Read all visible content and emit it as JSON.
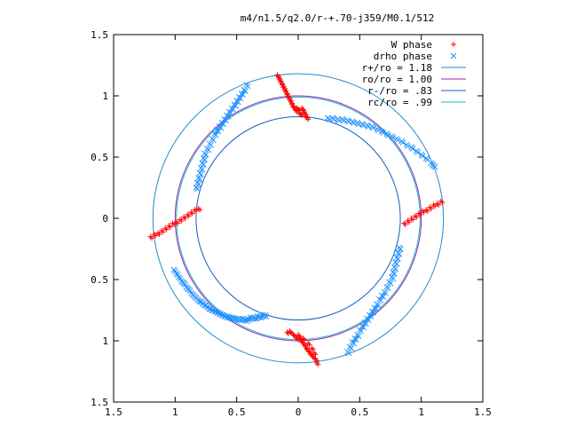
{
  "chart_data": {
    "type": "scatter",
    "title": "m4/n1.5/q2.0/r-+.70-j359/M0.1/512",
    "xlabel": "",
    "ylabel": "",
    "xlim": [
      -1.5,
      1.5
    ],
    "ylim": [
      -1.5,
      1.5
    ],
    "x_ticks": [
      -1.5,
      -1,
      -0.5,
      0,
      0.5,
      1,
      1.5
    ],
    "y_ticks": [
      -1.5,
      -1,
      -0.5,
      0,
      0.5,
      1,
      1.5
    ],
    "x_tick_labels": [
      "1.5",
      "1",
      "0.5",
      "0",
      "0.5",
      "1",
      "1.5"
    ],
    "y_tick_labels": [
      "1.5",
      "1",
      "0.5",
      "0",
      "0.5",
      "1",
      "1.5"
    ],
    "grid": false,
    "legend_position": "top-right",
    "series": [
      {
        "name": "W phase",
        "kind": "points",
        "marker": "plus",
        "color": "#ff0000",
        "x": [
          -0.17,
          -0.16,
          -0.15,
          -0.14,
          -0.13,
          -0.12,
          -0.11,
          -0.1,
          -0.09,
          -0.08,
          -0.07,
          -0.06,
          -0.05,
          -0.04,
          -0.03,
          -0.02,
          -0.01,
          0,
          0.01,
          0.02,
          0.03,
          0.04,
          0.05,
          0.06,
          0.07,
          -1.2,
          -1.17,
          -1.14,
          -1.11,
          -1.08,
          -1.05,
          -1.02,
          -0.99,
          -0.96,
          -0.93,
          -0.9,
          -0.87,
          -0.84,
          -0.81,
          1.16,
          1.13,
          1.1,
          1.07,
          1.04,
          1.01,
          0.98,
          0.95,
          0.92,
          0.89,
          0.86,
          -0.09,
          -0.07,
          -0.05,
          -0.03,
          -0.01,
          0,
          0.01,
          0.02,
          0.03,
          0.04,
          0.05,
          0.06,
          0.07,
          0.08,
          0.09,
          0.1,
          0.11,
          0.12,
          0.13,
          0.14,
          0.15
        ],
        "y": [
          1.17,
          1.15,
          1.13,
          1.11,
          1.09,
          1.07,
          1.05,
          1.03,
          1.01,
          0.99,
          0.97,
          0.95,
          0.93,
          0.91,
          0.9,
          0.88,
          0.9,
          0.89,
          0.86,
          0.85,
          0.9,
          0.88,
          0.86,
          0.84,
          0.82,
          -0.15,
          -0.13,
          -0.12,
          -0.1,
          -0.08,
          -0.06,
          -0.04,
          -0.03,
          -0.01,
          0.01,
          0.03,
          0.05,
          0.07,
          0.08,
          0.14,
          0.12,
          0.11,
          0.09,
          0.07,
          0.06,
          0.04,
          0.02,
          0,
          -0.02,
          -0.04,
          -0.93,
          -0.92,
          -0.94,
          -0.96,
          -0.98,
          -0.95,
          -0.97,
          -0.99,
          -1.01,
          -0.98,
          -1.03,
          -1.05,
          -1.07,
          -1.02,
          -1.09,
          -1.11,
          -1.06,
          -1.13,
          -1.1,
          -1.15,
          -1.18
        ]
      },
      {
        "name": "drho phase",
        "kind": "points",
        "marker": "cross",
        "color": "#1e90ff",
        "x": [
          -1.01,
          -0.99,
          -0.97,
          -0.95,
          -0.93,
          -0.91,
          -0.89,
          -0.87,
          -0.85,
          -0.83,
          -0.81,
          -0.79,
          -0.77,
          -0.75,
          -0.73,
          -0.71,
          -0.69,
          -0.67,
          -0.65,
          -0.63,
          -0.61,
          -0.59,
          -0.57,
          -0.55,
          -0.53,
          -0.51,
          -0.49,
          -0.47,
          -0.45,
          -0.43,
          -0.41,
          -0.39,
          -0.37,
          -0.35,
          -0.33,
          -0.31,
          -0.29,
          -0.27,
          -0.83,
          -0.82,
          -0.81,
          -0.8,
          -0.79,
          -0.78,
          -0.77,
          -0.76,
          -0.74,
          -0.72,
          -0.7,
          -0.68,
          -0.66,
          -0.64,
          -0.62,
          -0.6,
          -0.58,
          -0.56,
          -0.54,
          -0.52,
          -0.5,
          -0.48,
          -0.46,
          -0.44,
          -0.42,
          0.24,
          0.28,
          0.32,
          0.36,
          0.4,
          0.44,
          0.48,
          0.52,
          0.56,
          0.6,
          0.64,
          0.68,
          0.72,
          0.76,
          0.8,
          0.84,
          0.88,
          0.92,
          0.96,
          1.0,
          1.04,
          1.08,
          1.1,
          0.82,
          0.81,
          0.8,
          0.79,
          0.78,
          0.77,
          0.76,
          0.74,
          0.72,
          0.7,
          0.68,
          0.66,
          0.64,
          0.62,
          0.6,
          0.58,
          0.56,
          0.54,
          0.52,
          0.5,
          0.48,
          0.46,
          0.44,
          0.42,
          0.4
        ],
        "y": [
          -0.42,
          -0.45,
          -0.48,
          -0.51,
          -0.53,
          -0.56,
          -0.58,
          -0.61,
          -0.63,
          -0.65,
          -0.67,
          -0.68,
          -0.7,
          -0.71,
          -0.73,
          -0.74,
          -0.75,
          -0.76,
          -0.77,
          -0.78,
          -0.79,
          -0.8,
          -0.8,
          -0.81,
          -0.81,
          -0.82,
          -0.82,
          -0.82,
          -0.82,
          -0.83,
          -0.82,
          -0.81,
          -0.81,
          -0.81,
          -0.8,
          -0.8,
          -0.79,
          -0.79,
          0.25,
          0.29,
          0.33,
          0.37,
          0.41,
          0.45,
          0.49,
          0.53,
          0.57,
          0.61,
          0.65,
          0.69,
          0.72,
          0.75,
          0.78,
          0.81,
          0.84,
          0.87,
          0.9,
          0.93,
          0.96,
          0.99,
          1.02,
          1.05,
          1.09,
          0.82,
          0.82,
          0.81,
          0.81,
          0.8,
          0.79,
          0.78,
          0.77,
          0.76,
          0.75,
          0.73,
          0.71,
          0.69,
          0.67,
          0.65,
          0.63,
          0.6,
          0.58,
          0.55,
          0.52,
          0.49,
          0.45,
          0.43,
          -0.24,
          -0.28,
          -0.32,
          -0.36,
          -0.4,
          -0.44,
          -0.48,
          -0.52,
          -0.56,
          -0.6,
          -0.63,
          -0.66,
          -0.7,
          -0.73,
          -0.76,
          -0.79,
          -0.82,
          -0.85,
          -0.88,
          -0.91,
          -0.95,
          -0.98,
          -1.01,
          -1.05,
          -1.09
        ]
      },
      {
        "name": "r+/ro = 1.18",
        "kind": "circle",
        "radius": 1.18,
        "color": "#1f8fcf"
      },
      {
        "name": "ro/ro = 1.00",
        "kind": "circle",
        "radius": 1.0,
        "color": "#a020b0"
      },
      {
        "name": "r-/ro = .83",
        "kind": "circle",
        "radius": 0.83,
        "color": "#1060c0"
      },
      {
        "name": "rc/ro = .99",
        "kind": "circle",
        "radius": 0.99,
        "color": "#20b8c8"
      }
    ]
  }
}
